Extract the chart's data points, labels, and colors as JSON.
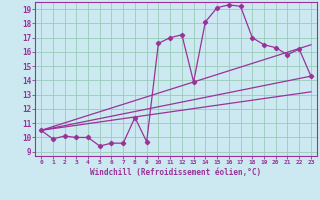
{
  "xlabel": "Windchill (Refroidissement éolien,°C)",
  "bg_color": "#cce8f0",
  "line_color": "#993399",
  "grid_color": "#99ccbb",
  "xlim": [
    -0.5,
    23.5
  ],
  "ylim": [
    8.7,
    19.5
  ],
  "xticks": [
    0,
    1,
    2,
    3,
    4,
    5,
    6,
    7,
    8,
    9,
    10,
    11,
    12,
    13,
    14,
    15,
    16,
    17,
    18,
    19,
    20,
    21,
    22,
    23
  ],
  "yticks": [
    9,
    10,
    11,
    12,
    13,
    14,
    15,
    16,
    17,
    18,
    19
  ],
  "series1_x": [
    0,
    1,
    2,
    3,
    4,
    5,
    6,
    7,
    8,
    9,
    10,
    11,
    12,
    13,
    14,
    15,
    16,
    17,
    18,
    19,
    20,
    21,
    22,
    23
  ],
  "series1_y": [
    10.5,
    9.9,
    10.1,
    10.0,
    10.0,
    9.4,
    9.6,
    9.6,
    11.4,
    9.7,
    16.6,
    17.0,
    17.2,
    13.9,
    18.1,
    19.1,
    19.3,
    19.2,
    17.0,
    16.5,
    16.3,
    15.8,
    16.2,
    14.3
  ],
  "line1_x": [
    0,
    23
  ],
  "line1_y": [
    10.5,
    14.3
  ],
  "line2_x": [
    0,
    23
  ],
  "line2_y": [
    10.5,
    16.5
  ],
  "line3_x": [
    0,
    23
  ],
  "line3_y": [
    10.5,
    13.2
  ]
}
